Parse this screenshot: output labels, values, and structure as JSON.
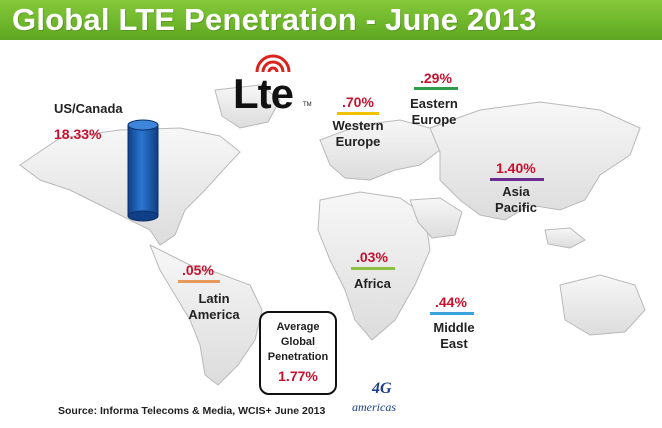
{
  "title": "Global LTE Penetration - June 2013",
  "logo": {
    "text": "Lte",
    "trademark": "TM",
    "icon": "signal-waves-icon"
  },
  "regions": [
    {
      "name": "US/Canada",
      "value": "18.33%",
      "color": "#1a5fb4"
    },
    {
      "name": "Western Europe",
      "value": ".70%",
      "color": "#f2c200"
    },
    {
      "name": "Eastern Europe",
      "value": ".29%",
      "color": "#2e9e4a"
    },
    {
      "name": "Asia Pacific",
      "value": "1.40%",
      "color": "#6a2c91"
    },
    {
      "name": "Latin America",
      "value": ".05%",
      "color": "#e89a5c"
    },
    {
      "name": "Africa",
      "value": ".03%",
      "color": "#8cbf3f"
    },
    {
      "name": "Middle East",
      "value": ".44%",
      "color": "#3aa3dc"
    }
  ],
  "average": {
    "label": "Average Global Penetration",
    "value": "1.77%"
  },
  "source": "Source: Informa Telecoms & Media, WCIS+ June 2013",
  "partner_logo": {
    "number": "4G",
    "name": "americas"
  },
  "colors": {
    "title_bar": "#6db52a",
    "value_text": "#c8102e",
    "cylinder": "#1a5fb4"
  }
}
